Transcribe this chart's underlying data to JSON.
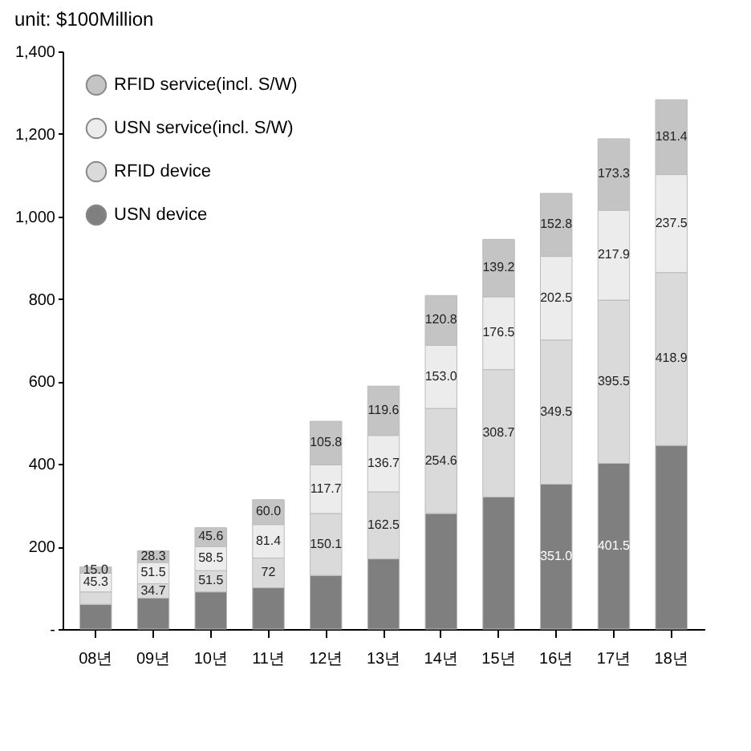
{
  "chart_data": {
    "type": "bar",
    "stacked": true,
    "title": "unit: $100Million",
    "categories": [
      "08년",
      "09년",
      "10년",
      "11년",
      "12년",
      "13년",
      "14년",
      "15년",
      "16년",
      "17년",
      "18년"
    ],
    "series": [
      {
        "name": "USN device",
        "color": "#7f7f7f",
        "values": [
          60,
          75,
          90,
          100,
          130,
          170,
          280,
          320,
          351,
          401.5,
          445
        ],
        "value_labels": [
          null,
          null,
          null,
          null,
          null,
          null,
          null,
          null,
          "351.0",
          "401.5",
          null
        ]
      },
      {
        "name": "RFID device",
        "color": "#dadada",
        "values": [
          30,
          34.7,
          51.5,
          72,
          150.1,
          162.5,
          254.6,
          308.7,
          349.5,
          395.5,
          418.9
        ],
        "value_labels": [
          null,
          "34.7",
          "51.5",
          "72",
          "150.1",
          "162.5",
          "254.6",
          "308.7",
          "349.5",
          "395.5",
          "418.9"
        ]
      },
      {
        "name": "USN service(incl. S/W)",
        "color": "#ececec",
        "values": [
          45.3,
          51.5,
          58.5,
          81.4,
          117.7,
          136.7,
          153.0,
          176.5,
          202.5,
          217.9,
          237.5
        ],
        "value_labels": [
          "45.3",
          "51.5",
          "58.5",
          "81.4",
          "117.7",
          "136.7",
          "153.0",
          "176.5",
          "202.5",
          "217.9",
          "237.5"
        ]
      },
      {
        "name": "RFID service(incl. S/W)",
        "color": "#c4c4c4",
        "values": [
          15.0,
          28.3,
          45.6,
          60.0,
          105.8,
          119.6,
          120.8,
          139.2,
          152.8,
          173.3,
          181.4
        ],
        "value_labels": [
          "15.0",
          "28.3",
          "45.6",
          "60.0",
          "105.8",
          "119.6",
          "120.8",
          "139.2",
          "152.8",
          "173.3",
          "181.4"
        ]
      }
    ],
    "ylim": [
      0,
      1400
    ],
    "yticks": [
      {
        "value": 0,
        "label": "-"
      },
      200,
      400,
      600,
      800,
      {
        "value": 1000,
        "label": "1,000"
      },
      {
        "value": 1200,
        "label": "1,200"
      },
      {
        "value": 1400,
        "label": "1,400"
      }
    ],
    "legend": "top left",
    "grid": false
  }
}
